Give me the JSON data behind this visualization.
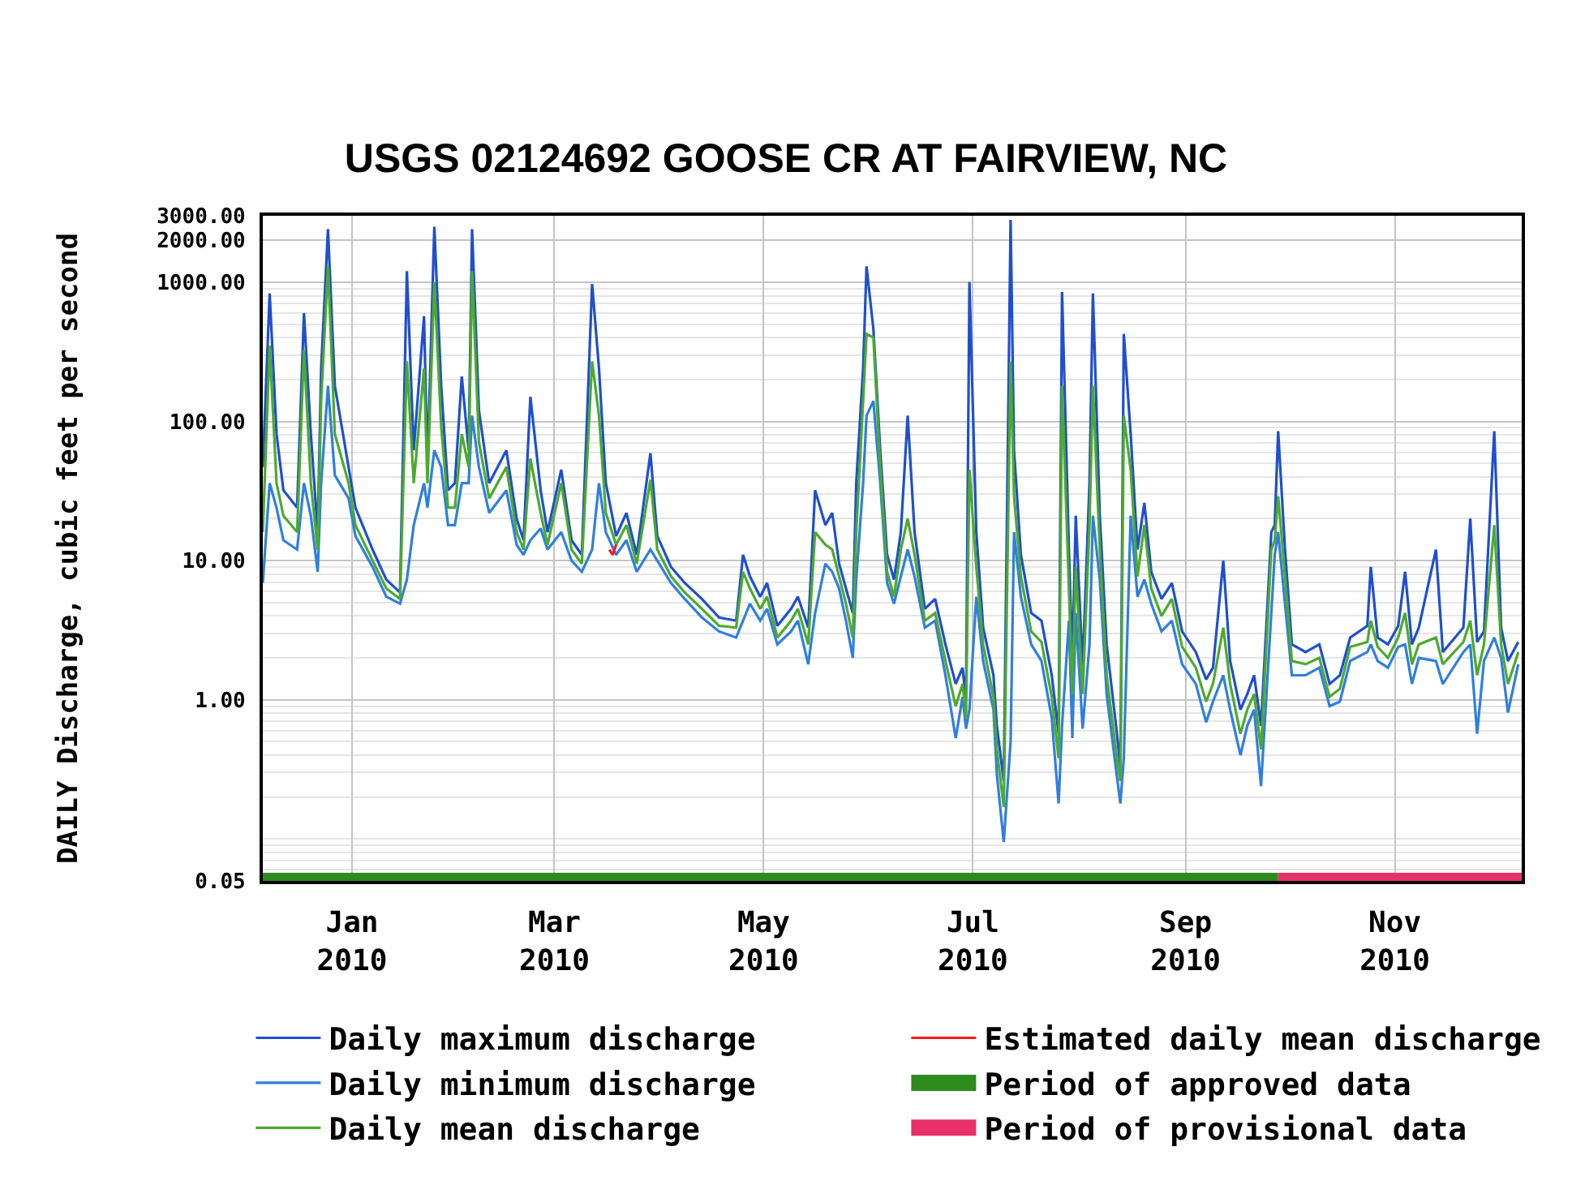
{
  "chart_data": {
    "type": "line",
    "title": "USGS 02124692 GOOSE CR AT FAIRVIEW, NC",
    "ylabel": "DAILY Discharge, cubic feet per second",
    "log": true,
    "grid": true,
    "legend": "bottom",
    "xlim": [
      "2009-12-06",
      "2010-12-08"
    ],
    "xticks": [
      {
        "value": "2010-01-01",
        "label": "Jan\n2010"
      },
      {
        "value": "2010-03-01",
        "label": "Mar\n2010"
      },
      {
        "value": "2010-05-01",
        "label": "May\n2010"
      },
      {
        "value": "2010-07-01",
        "label": "Jul\n2010"
      },
      {
        "value": "2010-09-01",
        "label": "Sep\n2010"
      },
      {
        "value": "2010-11-01",
        "label": "Nov\n2010"
      }
    ],
    "ylim": [
      0.05,
      3000
    ],
    "yticks": [
      0.05,
      {
        "value": 1,
        "label": "1.00"
      },
      {
        "value": 10,
        "label": "10.00"
      },
      {
        "value": 100,
        "label": "100.00"
      },
      {
        "value": 1000,
        "label": "1000.00"
      },
      {
        "value": 2000,
        "label": "2000.00"
      },
      {
        "value": 3000,
        "label": "3000.00"
      }
    ],
    "x": [
      "2009-12-06",
      "2009-12-08",
      "2009-12-10",
      "2009-12-12",
      "2009-12-16",
      "2009-12-18",
      "2009-12-20",
      "2009-12-22",
      "2009-12-23",
      "2009-12-25",
      "2009-12-27",
      "2009-12-31",
      "2010-01-02",
      "2010-01-07",
      "2010-01-11",
      "2010-01-15",
      "2010-01-17",
      "2010-01-19",
      "2010-01-22",
      "2010-01-23",
      "2010-01-25",
      "2010-01-27",
      "2010-01-29",
      "2010-01-31",
      "2010-02-02",
      "2010-02-04",
      "2010-02-05",
      "2010-02-07",
      "2010-02-10",
      "2010-02-15",
      "2010-02-18",
      "2010-02-20",
      "2010-02-22",
      "2010-02-25",
      "2010-02-27",
      "2010-03-03",
      "2010-03-06",
      "2010-03-09",
      "2010-03-12",
      "2010-03-14",
      "2010-03-16",
      "2010-03-19",
      "2010-03-22",
      "2010-03-25",
      "2010-03-29",
      "2010-03-31",
      "2010-04-04",
      "2010-04-08",
      "2010-04-13",
      "2010-04-18",
      "2010-04-23",
      "2010-04-25",
      "2010-04-27",
      "2010-04-30",
      "2010-05-02",
      "2010-05-05",
      "2010-05-09",
      "2010-05-11",
      "2010-05-14",
      "2010-05-16",
      "2010-05-19",
      "2010-05-21",
      "2010-05-23",
      "2010-05-25",
      "2010-05-27",
      "2010-05-28",
      "2010-05-30",
      "2010-05-31",
      "2010-06-02",
      "2010-06-04",
      "2010-06-06",
      "2010-06-08",
      "2010-06-10",
      "2010-06-12",
      "2010-06-14",
      "2010-06-17",
      "2010-06-20",
      "2010-06-23",
      "2010-06-26",
      "2010-06-28",
      "2010-06-29",
      "2010-06-30",
      "2010-07-02",
      "2010-07-04",
      "2010-07-07",
      "2010-07-08",
      "2010-07-10",
      "2010-07-12",
      "2010-07-13",
      "2010-07-15",
      "2010-07-18",
      "2010-07-21",
      "2010-07-24",
      "2010-07-26",
      "2010-07-27",
      "2010-07-29",
      "2010-07-30",
      "2010-07-31",
      "2010-08-02",
      "2010-08-04",
      "2010-08-05",
      "2010-08-07",
      "2010-08-09",
      "2010-08-12",
      "2010-08-13",
      "2010-08-14",
      "2010-08-16",
      "2010-08-18",
      "2010-08-20",
      "2010-08-22",
      "2010-08-25",
      "2010-08-28",
      "2010-08-31",
      "2010-09-04",
      "2010-09-07",
      "2010-09-09",
      "2010-09-12",
      "2010-09-14",
      "2010-09-17",
      "2010-09-19",
      "2010-09-21",
      "2010-09-23",
      "2010-09-26",
      "2010-09-27",
      "2010-09-28",
      "2010-09-30",
      "2010-10-02",
      "2010-10-06",
      "2010-10-10",
      "2010-10-13",
      "2010-10-16",
      "2010-10-19",
      "2010-10-24",
      "2010-10-25",
      "2010-10-27",
      "2010-10-30",
      "2010-11-02",
      "2010-11-04",
      "2010-11-06",
      "2010-11-08",
      "2010-11-13",
      "2010-11-15",
      "2010-11-21",
      "2010-11-23",
      "2010-11-25",
      "2010-11-27",
      "2010-11-30",
      "2010-12-02",
      "2010-12-04",
      "2010-12-07"
    ],
    "series": [
      {
        "name": "Daily maximum discharge",
        "color": "#1f4fd0",
        "values": [
          47,
          830,
          81,
          32,
          24,
          600,
          81,
          16,
          240,
          2400,
          180,
          47,
          24,
          12,
          7.3,
          5.9,
          1200,
          62,
          570,
          47,
          2500,
          180,
          32,
          36,
          210,
          62,
          2400,
          120,
          36,
          62,
          20,
          14,
          150,
          32,
          16,
          45,
          14,
          11,
          970,
          240,
          36,
          15,
          22,
          11,
          59,
          15,
          9.0,
          6.9,
          5.3,
          3.9,
          3.7,
          11,
          7.7,
          5.5,
          6.9,
          3.4,
          4.5,
          5.5,
          3.3,
          32,
          18,
          22,
          9.5,
          6.3,
          4.2,
          36,
          240,
          1300,
          460,
          62,
          11,
          7.3,
          16,
          110,
          16,
          4.5,
          5.3,
          2.5,
          1.3,
          1.7,
          0.97,
          1000,
          16,
          3.3,
          1.5,
          0.65,
          0.26,
          2800,
          62,
          11,
          4.2,
          3.7,
          1.5,
          0.57,
          850,
          12,
          1.9,
          21,
          1.7,
          36,
          830,
          21,
          2.5,
          0.57,
          0.33,
          425,
          81,
          12,
          26,
          8.3,
          5.3,
          6.9,
          3.1,
          2.2,
          1.4,
          1.7,
          10,
          1.9,
          0.85,
          1.1,
          1.5,
          0.65,
          16,
          18,
          85,
          12,
          2.5,
          2.2,
          2.5,
          1.3,
          1.5,
          2.8,
          3.4,
          9.0,
          2.8,
          2.5,
          3.4,
          8.3,
          2.5,
          3.3,
          12,
          2.2,
          3.3,
          20,
          2.6,
          3.1,
          85,
          3.3,
          1.9,
          2.6
        ]
      },
      {
        "name": "Daily minimum discharge",
        "color": "#2f7fe0",
        "values": [
          6.9,
          36,
          24,
          14,
          12,
          36,
          21,
          8.3,
          36,
          180,
          41,
          28,
          15,
          9.0,
          5.5,
          4.9,
          7.3,
          18,
          36,
          24,
          62,
          47,
          18,
          18,
          36,
          36,
          110,
          47,
          22,
          32,
          13,
          11,
          14,
          17,
          12,
          16,
          10,
          8.3,
          12,
          36,
          16,
          11,
          14,
          8.3,
          12,
          10,
          6.9,
          5.3,
          3.9,
          3.1,
          2.8,
          3.7,
          4.9,
          3.7,
          4.5,
          2.5,
          3.1,
          3.7,
          1.8,
          4.2,
          9.5,
          8.3,
          6.3,
          3.7,
          2.0,
          7.3,
          36,
          110,
          140,
          36,
          6.9,
          4.9,
          7.7,
          12,
          7.7,
          3.3,
          3.7,
          1.5,
          0.53,
          1.05,
          0.62,
          0.85,
          5.5,
          1.9,
          0.85,
          0.29,
          0.095,
          0.5,
          16,
          5.5,
          2.5,
          1.9,
          0.74,
          0.18,
          0.65,
          3.7,
          0.53,
          4.2,
          0.62,
          2.5,
          21,
          7.3,
          1.1,
          0.28,
          0.18,
          0.38,
          21,
          5.5,
          7.3,
          4.9,
          3.1,
          3.7,
          1.8,
          1.3,
          0.69,
          0.97,
          1.5,
          0.85,
          0.4,
          0.65,
          0.85,
          0.24,
          4.2,
          11,
          16,
          4.9,
          1.5,
          1.5,
          1.7,
          0.9,
          0.97,
          1.9,
          2.2,
          2.5,
          1.9,
          1.7,
          2.4,
          2.5,
          1.3,
          2.0,
          1.9,
          1.3,
          2.2,
          2.5,
          0.57,
          1.9,
          2.8,
          2.0,
          0.81,
          1.8
        ]
      },
      {
        "name": "Daily mean discharge",
        "color": "#4caa2c",
        "values": [
          16,
          350,
          36,
          21,
          16,
          325,
          36,
          12,
          140,
          1300,
          81,
          36,
          18,
          10,
          6.3,
          5.3,
          270,
          36,
          240,
          36,
          1000,
          92,
          24,
          24,
          81,
          47,
          1200,
          71,
          28,
          47,
          16,
          12,
          54,
          22,
          13,
          36,
          12,
          9.5,
          270,
          110,
          22,
          13,
          18,
          9.5,
          38,
          12,
          7.7,
          5.9,
          4.5,
          3.4,
          3.3,
          8.3,
          6.3,
          4.5,
          5.5,
          2.8,
          3.7,
          4.5,
          2.5,
          16,
          13,
          12,
          7.7,
          4.9,
          2.8,
          16,
          140,
          425,
          400,
          47,
          8.3,
          5.5,
          12,
          20,
          11,
          3.7,
          4.2,
          1.9,
          0.9,
          1.3,
          0.74,
          45,
          9.0,
          2.5,
          1.05,
          0.44,
          0.17,
          270,
          29,
          7.7,
          3.1,
          2.6,
          1.05,
          0.38,
          180,
          6.3,
          1.1,
          9.0,
          1.1,
          18,
          180,
          12,
          1.5,
          0.38,
          0.26,
          110,
          45,
          7.7,
          18,
          6.3,
          4.0,
          5.3,
          2.4,
          1.7,
          0.97,
          1.3,
          3.3,
          1.3,
          0.57,
          0.85,
          1.1,
          0.44,
          12,
          14,
          29,
          7.7,
          1.9,
          1.8,
          2.0,
          1.05,
          1.2,
          2.4,
          2.6,
          3.7,
          2.4,
          2.0,
          2.8,
          4.2,
          1.8,
          2.5,
          2.8,
          1.8,
          2.6,
          3.7,
          1.5,
          2.5,
          18,
          2.5,
          1.3,
          2.2
        ]
      },
      {
        "name": "Estimated daily mean discharge",
        "color": "#ff1a1a",
        "x": [
          "2010-03-17",
          "2010-03-18",
          "2010-03-19"
        ],
        "values": [
          12,
          11,
          13
        ]
      },
      {
        "name": "Period of approved data",
        "color": "#2e8b1e",
        "x": [
          "2009-12-06",
          "2010-09-28"
        ],
        "values": [
          0.05,
          0.05
        ]
      },
      {
        "name": "Period of provisional data",
        "color": "#e8306a",
        "x": [
          "2010-09-28",
          "2010-12-08"
        ],
        "values": [
          0.05,
          0.05
        ]
      }
    ]
  }
}
